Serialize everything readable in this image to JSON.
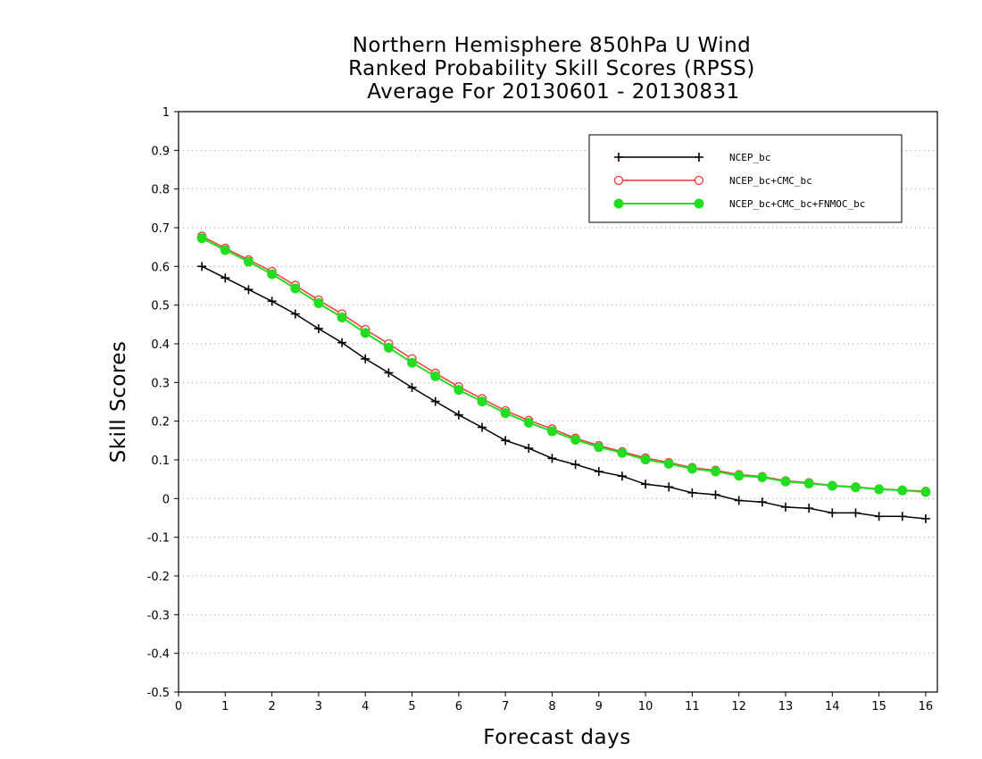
{
  "chart_data": {
    "type": "line",
    "title": [
      "Northern Hemisphere 850hPa U Wind",
      "Ranked Probability Skill Scores (RPSS)",
      "Average For 20130601 - 20130831"
    ],
    "xlabel": "Forecast days",
    "ylabel": "Skill Scores",
    "xlim": [
      0,
      16.25
    ],
    "ylim": [
      -0.5,
      1
    ],
    "xticks": [
      0,
      1,
      2,
      3,
      4,
      5,
      6,
      7,
      8,
      9,
      10,
      11,
      12,
      13,
      14,
      15,
      16
    ],
    "yticks": [
      -0.5,
      -0.4,
      -0.3,
      -0.2,
      -0.1,
      0,
      0.1,
      0.2,
      0.3,
      0.4,
      0.5,
      0.6,
      0.7,
      0.8,
      0.9,
      1
    ],
    "ytick_labels": [
      "-0.5",
      "-0.4",
      "-0.3",
      "-0.2",
      "-0.1",
      "0",
      "0.1",
      "0.2",
      "0.3",
      "0.4",
      "0.5",
      "0.6",
      "0.7",
      "0.8",
      "0.9",
      "1"
    ],
    "grid": "horizontal dotted",
    "legend_position": "top-right",
    "x": [
      0.5,
      1,
      1.5,
      2,
      2.5,
      3,
      3.5,
      4,
      4.5,
      5,
      5.5,
      6,
      6.5,
      7,
      7.5,
      8,
      8.5,
      9,
      9.5,
      10,
      10.5,
      11,
      11.5,
      12,
      12.5,
      13,
      13.5,
      14,
      14.5,
      15,
      15.5,
      16
    ],
    "series": [
      {
        "name": "NCEP_bc",
        "color": "#000000",
        "marker": "plus",
        "values": [
          0.6,
          0.57,
          0.54,
          0.51,
          0.477,
          0.439,
          0.403,
          0.361,
          0.325,
          0.287,
          0.251,
          0.216,
          0.184,
          0.15,
          0.13,
          0.104,
          0.088,
          0.07,
          0.058,
          0.037,
          0.03,
          0.015,
          0.01,
          -0.005,
          -0.009,
          -0.022,
          -0.025,
          -0.037,
          -0.037,
          -0.046,
          -0.046,
          -0.052
        ]
      },
      {
        "name": "NCEP_bc+CMC_bc",
        "color": "#ff3333",
        "marker": "open-circle",
        "values": [
          0.678,
          0.647,
          0.617,
          0.587,
          0.551,
          0.513,
          0.477,
          0.437,
          0.4,
          0.361,
          0.324,
          0.289,
          0.258,
          0.227,
          0.202,
          0.18,
          0.156,
          0.137,
          0.121,
          0.105,
          0.093,
          0.08,
          0.073,
          0.062,
          0.057,
          0.046,
          0.041,
          0.034,
          0.03,
          0.025,
          0.022,
          0.019
        ]
      },
      {
        "name": "NCEP_bc+CMC_bc+FNMOC_bc",
        "color": "#22dd22",
        "marker": "filled-circle",
        "values": [
          0.673,
          0.642,
          0.612,
          0.58,
          0.543,
          0.505,
          0.468,
          0.428,
          0.39,
          0.351,
          0.316,
          0.281,
          0.251,
          0.221,
          0.196,
          0.174,
          0.152,
          0.133,
          0.118,
          0.101,
          0.09,
          0.077,
          0.07,
          0.059,
          0.055,
          0.044,
          0.039,
          0.033,
          0.029,
          0.024,
          0.021,
          0.017
        ]
      }
    ]
  }
}
